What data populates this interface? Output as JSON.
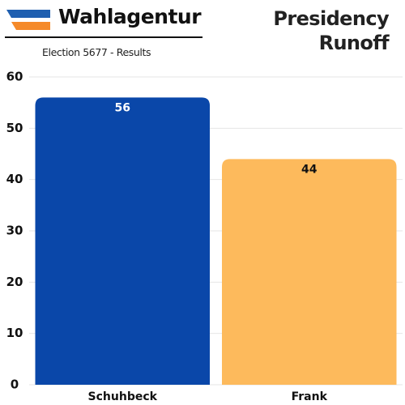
{
  "header": {
    "brand": "Wahlagentur",
    "subtitle": "Election 5677 - Results"
  },
  "chart_data": {
    "type": "bar",
    "title": "Presidency Runoff",
    "categories": [
      "Schuhbeck",
      "Frank"
    ],
    "values": [
      56,
      44
    ],
    "colors": [
      "#0a47a9",
      "#fdba5c"
    ],
    "value_label_colors": [
      "#ffffff",
      "#111111"
    ],
    "ylim": [
      0,
      60
    ],
    "yticks": [
      0,
      10,
      20,
      30,
      40,
      50,
      60
    ],
    "grid": true
  }
}
